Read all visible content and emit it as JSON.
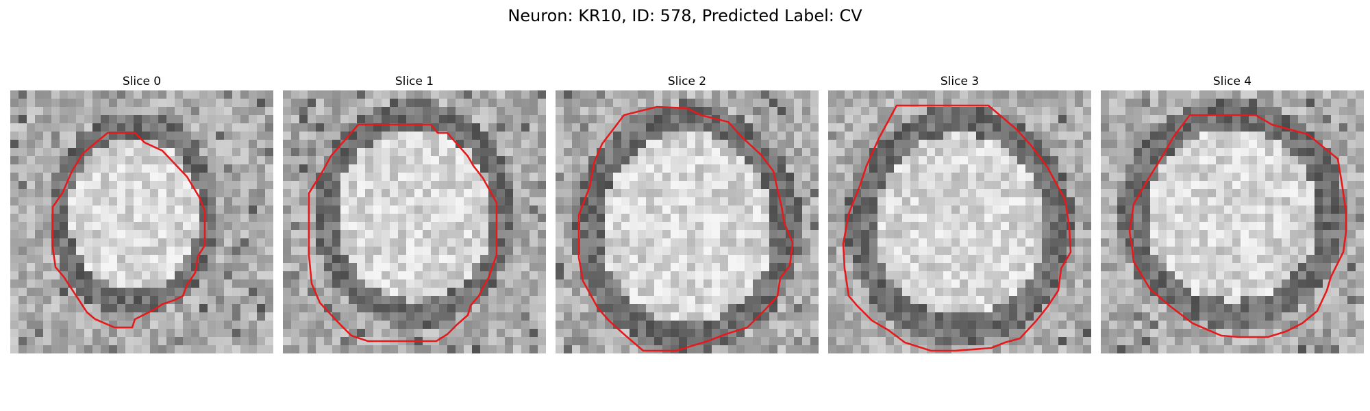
{
  "figure": {
    "title": "Neuron: KR10, ID: 578, Predicted Label: CV",
    "colormap": "gray",
    "contour_color": "#e41a1c"
  },
  "panels": [
    {
      "title": "Slice 0"
    },
    {
      "title": "Slice 1"
    },
    {
      "title": "Slice 2"
    },
    {
      "title": "Slice 3"
    },
    {
      "title": "Slice 4"
    }
  ]
}
